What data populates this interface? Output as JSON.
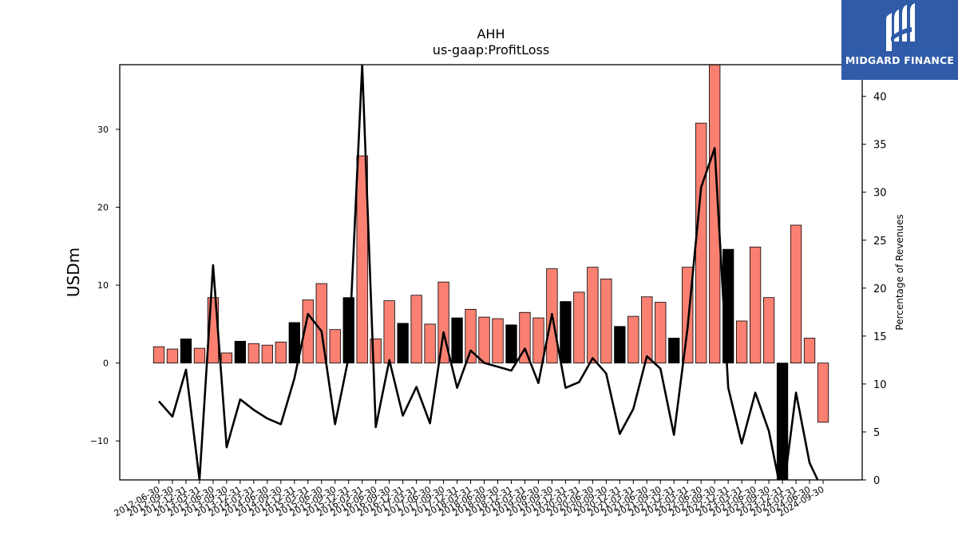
{
  "brand": {
    "name": "MIDGARD FINANCE",
    "background": "#2f5ba8"
  },
  "chart_data": {
    "type": "bar",
    "title": "AHH",
    "subtitle": "us-gaap:ProfitLoss",
    "ylabel": "USDm",
    "y2label": "Percentage of Revenues",
    "ylim": [
      -15,
      38.3
    ],
    "y2lim": [
      0,
      43.3
    ],
    "yticks": [
      -10,
      0,
      10,
      20,
      30
    ],
    "y2ticks": [
      0,
      5,
      10,
      15,
      20,
      25,
      30,
      35,
      40
    ],
    "colors": {
      "default_bar": "#fa8072",
      "highlight_bar": "#000000",
      "line": "#000000"
    },
    "categories": [
      "2012-06-30",
      "2012-09-30",
      "2012-12-31",
      "2013-03-31",
      "2013-06-30",
      "2013-09-30",
      "2013-12-31",
      "2014-03-31",
      "2014-06-30",
      "2014-09-30",
      "2014-12-31",
      "2015-03-31",
      "2015-06-30",
      "2015-09-30",
      "2015-12-31",
      "2016-03-31",
      "2016-06-30",
      "2016-09-30",
      "2016-12-31",
      "2017-03-31",
      "2017-06-30",
      "2017-09-30",
      "2017-12-31",
      "2018-03-31",
      "2018-06-30",
      "2018-09-30",
      "2018-12-31",
      "2019-03-31",
      "2019-06-30",
      "2019-09-30",
      "2019-12-31",
      "2020-03-31",
      "2020-06-30",
      "2020-09-30",
      "2020-12-31",
      "2021-03-31",
      "2021-06-30",
      "2021-09-30",
      "2021-12-31",
      "2022-03-31",
      "2022-06-30",
      "2022-09-30",
      "2022-12-31",
      "2023-03-31",
      "2023-06-30",
      "2023-09-30",
      "2023-12-31",
      "2024-03-31",
      "2024-06-30",
      "2024-09-30"
    ],
    "visible_tick_labels": [
      "2012-06-30",
      "2012-09-30",
      "2012-12-31",
      "2013-03-31",
      "2013-06-30",
      "2013-09-30",
      "2013-12-31",
      "2014-03-31",
      "2014-06-30",
      "2014-09-30",
      "2014-12-31",
      "2015-03-31",
      "2015-06-30",
      "2015-09-30",
      "2015-12-31",
      "2016-03-31",
      "2016-06-30",
      "2016-09-30",
      "2016-12-31",
      "2017-03-31",
      "2017-06-30",
      "2017-09-30",
      "2017-12-31",
      "2018-03-31",
      "2018-06-30",
      "2018-09-30",
      "2018-12-31",
      "2019-03-31",
      "2019-06-30",
      "2019-09-30",
      "2019-12-31",
      "2020-03-31",
      "2020-06-30",
      "2020-09-30",
      "2020-12-31",
      "2021-03-31",
      "2021-06-30",
      "2021-09-30",
      "2021-12-31",
      "2022-03-31",
      "2022-06-30",
      "2022-09-30",
      "2022-12-31",
      "2023-03-31",
      "2023-06-30",
      "2023-09-30",
      "2023-12-31",
      "2024-03-31",
      "2024-06-30",
      "2024-09-30"
    ],
    "series": [
      {
        "type": "bar",
        "values": [
          2.1,
          1.8,
          3.1,
          1.9,
          8.4,
          1.3,
          2.8,
          2.5,
          2.3,
          2.7,
          5.2,
          8.1,
          10.2,
          4.3,
          8.4,
          26.6,
          3.1,
          8.0,
          5.1,
          8.7,
          5.0,
          10.4,
          5.8,
          6.9,
          5.9,
          5.7,
          4.9,
          6.5,
          5.8,
          12.1,
          7.9,
          9.1,
          12.3,
          10.8,
          4.7,
          6.0,
          8.5,
          7.8,
          3.2,
          12.3,
          30.8,
          38.3,
          14.6,
          5.4,
          14.9,
          8.4,
          -15.0,
          17.7,
          3.2,
          -7.6
        ],
        "highlight": [
          false,
          false,
          true,
          false,
          false,
          false,
          true,
          false,
          false,
          false,
          true,
          false,
          false,
          false,
          true,
          false,
          false,
          false,
          true,
          false,
          false,
          false,
          true,
          false,
          false,
          false,
          true,
          false,
          false,
          false,
          true,
          false,
          false,
          false,
          true,
          false,
          false,
          false,
          true,
          false,
          false,
          false,
          true,
          false,
          false,
          false,
          true,
          false,
          false,
          false
        ]
      },
      {
        "type": "line",
        "axis": "right",
        "values": [
          8.2,
          6.6,
          11.5,
          0.0,
          22.4,
          3.4,
          8.4,
          7.3,
          6.4,
          5.8,
          10.6,
          17.3,
          15.5,
          5.8,
          12.8,
          43.3,
          5.5,
          12.5,
          6.7,
          9.7,
          5.9,
          15.4,
          9.6,
          13.5,
          12.2,
          11.8,
          11.4,
          13.7,
          10.1,
          17.3,
          9.6,
          10.2,
          12.7,
          11.1,
          4.8,
          7.4,
          12.9,
          11.6,
          4.7,
          15.8,
          30.5,
          34.6,
          9.6,
          3.8,
          9.1,
          5.1,
          -2.0,
          9.1,
          1.8,
          -1.2
        ]
      }
    ]
  }
}
